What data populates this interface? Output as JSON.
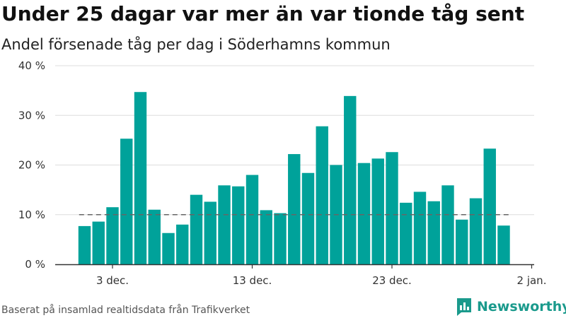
{
  "title": "Under 25 dagar var mer än var tionde tåg sent",
  "subtitle": "Andel försenade tåg per dag i Söderhamns kommun",
  "source": "Baserat på insamlad realtidsdata från Trafikverket",
  "brand": {
    "name": "Newsworthy",
    "icon": "newsworthy-logo-icon",
    "color": "#1a9a8c"
  },
  "colors": {
    "bar": "#00a29a",
    "reference_line": "#666666",
    "grid": "#dddddd",
    "axis": "#333333"
  },
  "chart_data": {
    "type": "bar",
    "title": "Under 25 dagar var mer än var tionde tåg sent",
    "subtitle": "Andel försenade tåg per dag i Söderhamns kommun",
    "xlabel": "",
    "ylabel": "",
    "ylim": [
      0,
      40
    ],
    "y_ticks": [
      0,
      10,
      20,
      30,
      40
    ],
    "y_tick_labels": [
      "0 %",
      "10 %",
      "20 %",
      "30 %",
      "40 %"
    ],
    "x_tick_labels": [
      {
        "label": "3 dec.",
        "date": "2023-12-03"
      },
      {
        "label": "13 dec.",
        "date": "2023-12-13"
      },
      {
        "label": "23 dec.",
        "date": "2023-12-23"
      },
      {
        "label": "2 jan.",
        "date": "2024-01-02"
      }
    ],
    "reference_line": 10,
    "grid": true,
    "x": [
      "2023-12-01",
      "2023-12-02",
      "2023-12-03",
      "2023-12-04",
      "2023-12-05",
      "2023-12-06",
      "2023-12-07",
      "2023-12-08",
      "2023-12-09",
      "2023-12-10",
      "2023-12-11",
      "2023-12-12",
      "2023-12-13",
      "2023-12-14",
      "2023-12-15",
      "2023-12-16",
      "2023-12-17",
      "2023-12-18",
      "2023-12-19",
      "2023-12-20",
      "2023-12-21",
      "2023-12-22",
      "2023-12-23",
      "2023-12-24",
      "2023-12-25",
      "2023-12-26",
      "2023-12-27",
      "2023-12-28",
      "2023-12-29",
      "2023-12-30",
      "2023-12-31"
    ],
    "values": [
      7.7,
      8.6,
      11.5,
      25.3,
      34.7,
      11.0,
      6.3,
      8.0,
      14.0,
      12.6,
      15.9,
      15.7,
      18.0,
      10.9,
      10.3,
      22.2,
      18.4,
      27.8,
      20.0,
      33.9,
      20.4,
      21.3,
      22.6,
      12.4,
      14.6,
      12.7,
      15.9,
      9.0,
      13.3,
      23.3,
      7.8
    ]
  }
}
